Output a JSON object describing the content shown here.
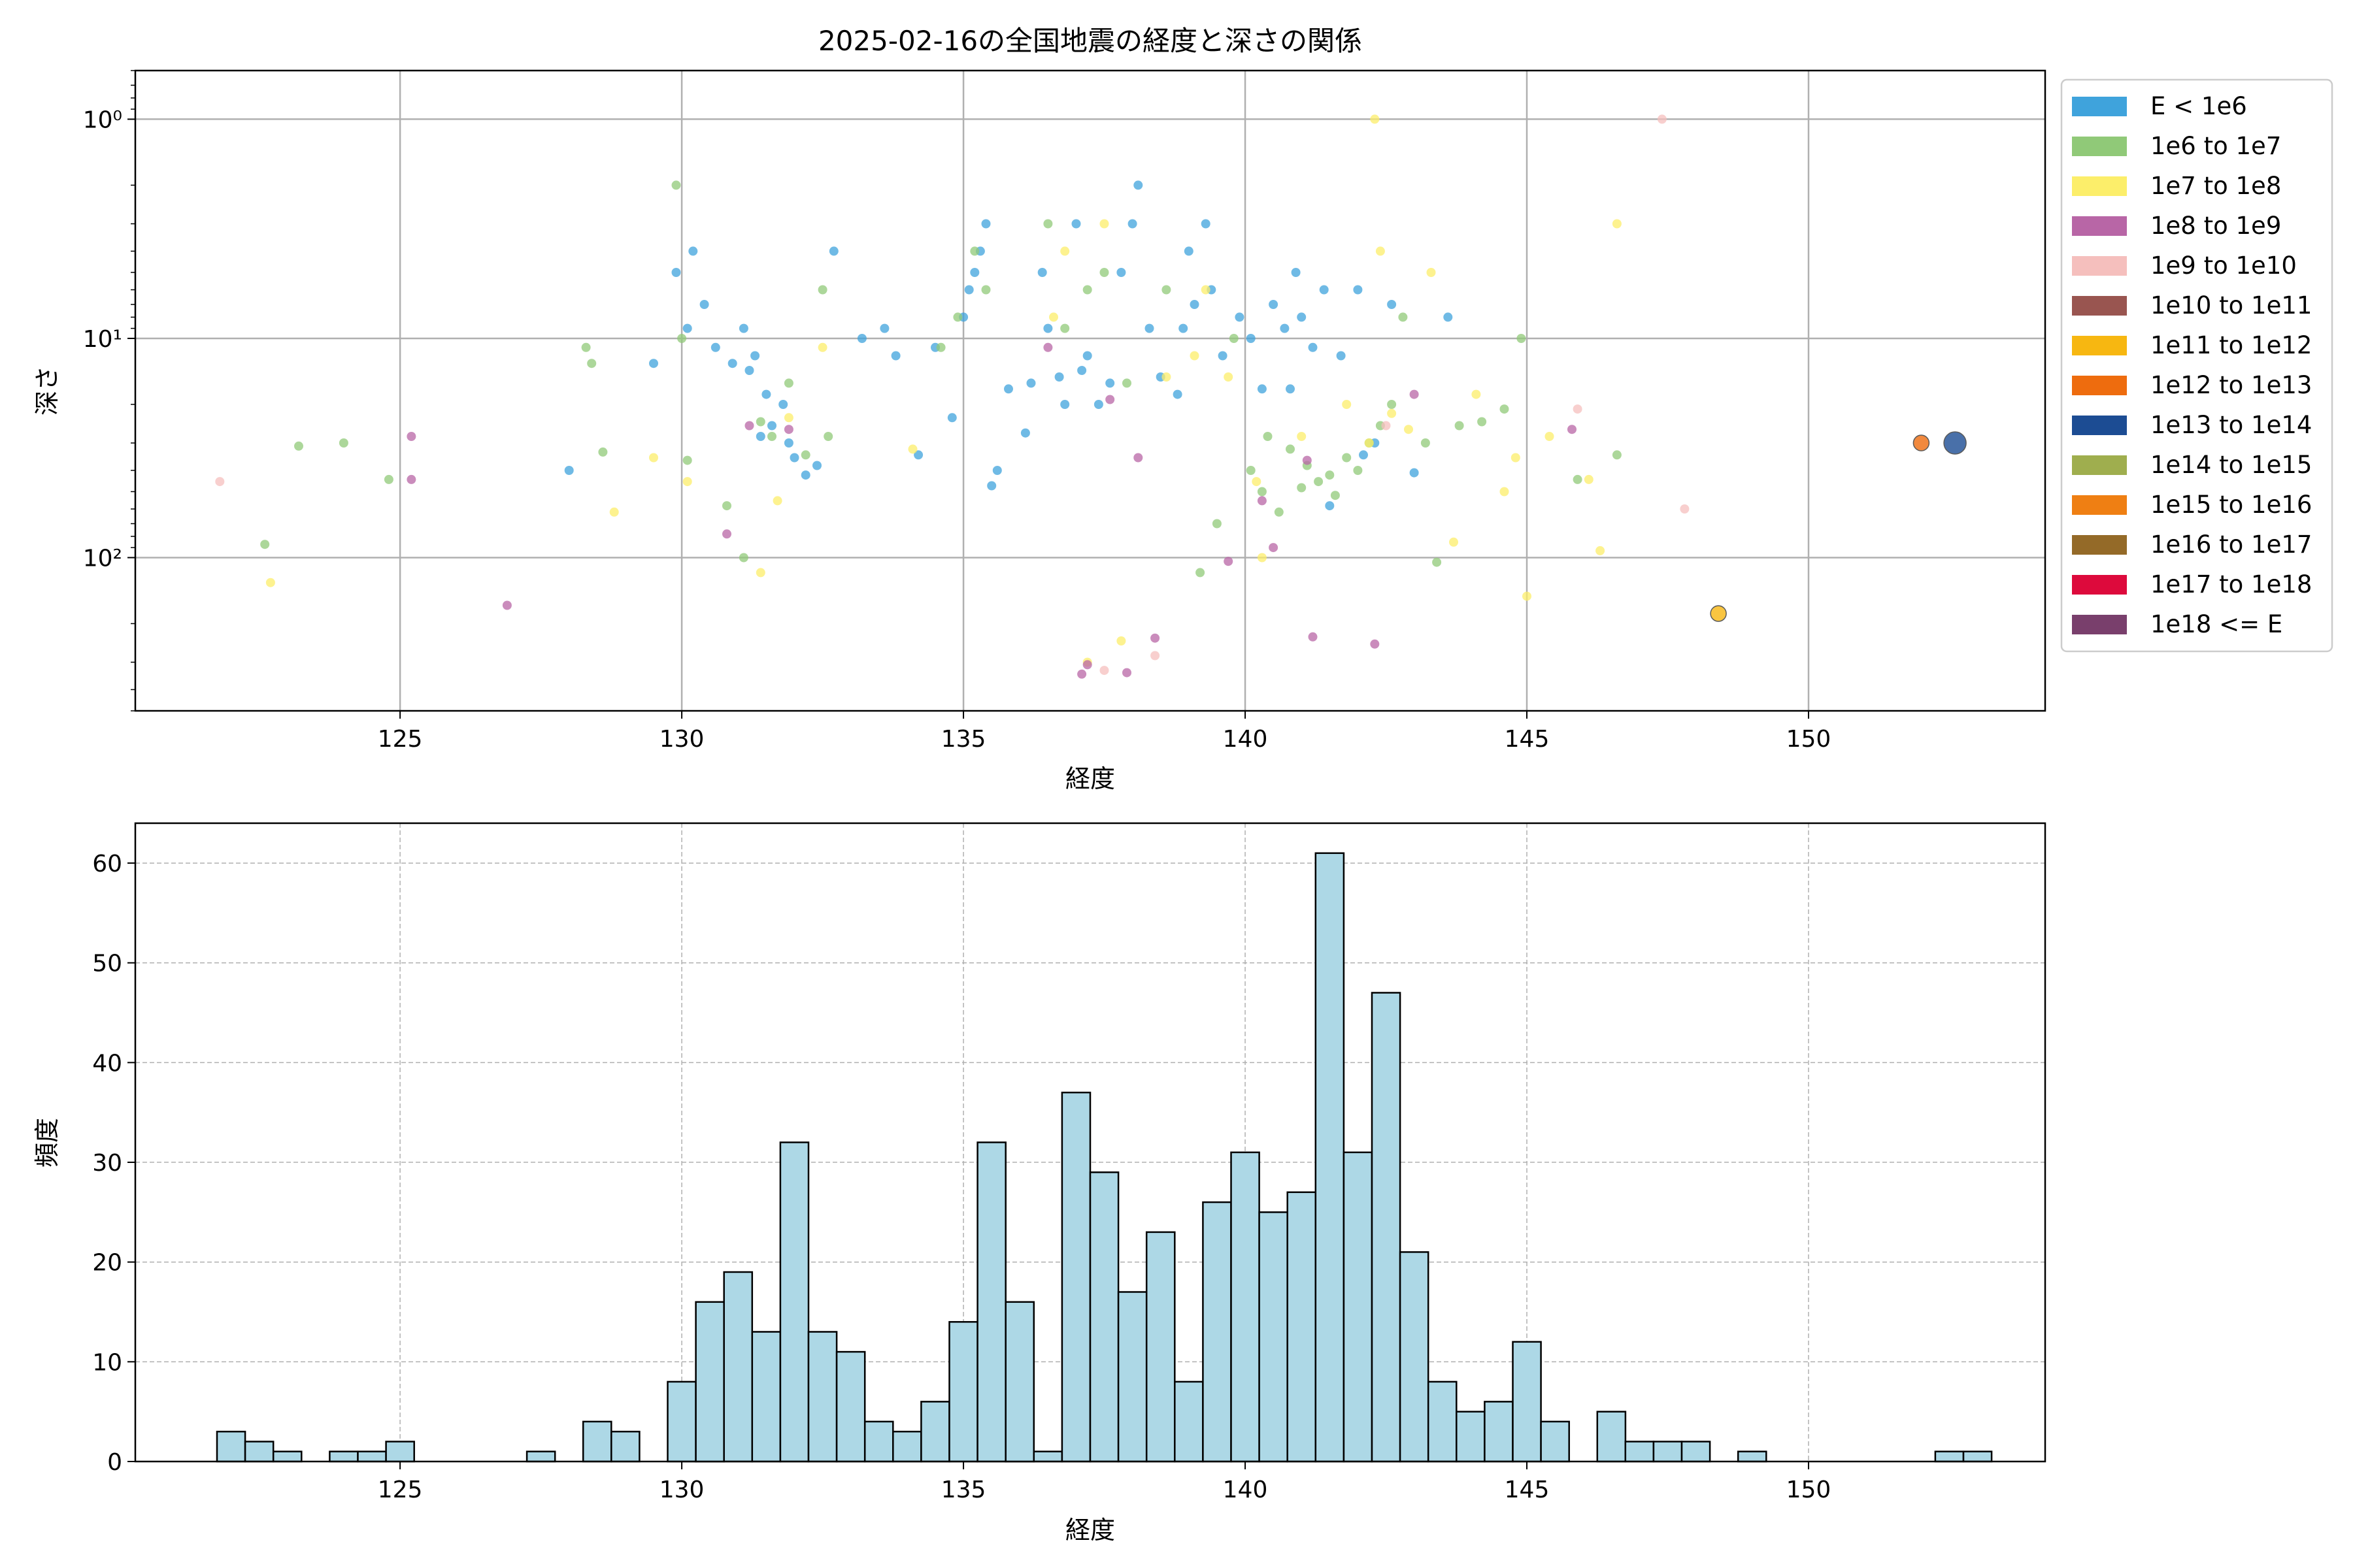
{
  "chart_data": [
    {
      "type": "scatter",
      "title": "2025-02-16の全国地震の経度と深さの関係",
      "xlabel": "経度",
      "ylabel": "深さ",
      "xlim": [
        120.3,
        154.2
      ],
      "ylim": [
        500,
        0.6
      ],
      "y_scale": "log",
      "y_inverted": true,
      "grid": true,
      "xticks": [
        125,
        130,
        135,
        140,
        145,
        150
      ],
      "yticks": [
        {
          "value": 1,
          "label": "10⁰"
        },
        {
          "value": 10,
          "label": "10¹"
        },
        {
          "value": 100,
          "label": "10²"
        }
      ],
      "legend_position": "outside-right",
      "legend": [
        {
          "label": "E < 1e6",
          "color": "#3fa3dc"
        },
        {
          "label": "1e6 to 1e7",
          "color": "#90c978"
        },
        {
          "label": "1e7 to 1e8",
          "color": "#fcee6a"
        },
        {
          "label": "1e8 to 1e9",
          "color": "#b866a6"
        },
        {
          "label": "1e9 to 1e10",
          "color": "#f5bfbd"
        },
        {
          "label": "1e10 to 1e11",
          "color": "#995550"
        },
        {
          "label": "1e11 to 1e12",
          "color": "#f7b711"
        },
        {
          "label": "1e12 to 1e13",
          "color": "#ee6c0e"
        },
        {
          "label": "1e13 to 1e14",
          "color": "#1c4c93"
        },
        {
          "label": "1e14 to 1e15",
          "color": "#9fae4e"
        },
        {
          "label": "1e15 to 1e16",
          "color": "#ef7f13"
        },
        {
          "label": "1e16 to 1e17",
          "color": "#946a28"
        },
        {
          "label": "1e17 to 1e18",
          "color": "#dd0a3c"
        },
        {
          "label": "1e18 <= E",
          "color": "#793f6c"
        }
      ],
      "series": [
        {
          "class": 0,
          "points": [
            [
              129.9,
              5
            ],
            [
              130.2,
              4
            ],
            [
              130.4,
              7
            ],
            [
              130.6,
              11
            ],
            [
              130.9,
              13
            ],
            [
              131.1,
              9
            ],
            [
              131.2,
              14
            ],
            [
              131.3,
              12
            ],
            [
              131.5,
              18
            ],
            [
              131.6,
              25
            ],
            [
              131.8,
              20
            ],
            [
              131.9,
              30
            ],
            [
              132.0,
              35
            ],
            [
              132.2,
              42
            ],
            [
              132.4,
              38
            ],
            [
              132.7,
              4
            ],
            [
              133.2,
              10
            ],
            [
              133.6,
              9
            ],
            [
              133.8,
              12
            ],
            [
              134.2,
              34
            ],
            [
              134.5,
              11
            ],
            [
              134.8,
              23
            ],
            [
              135.0,
              8
            ],
            [
              135.1,
              6
            ],
            [
              135.2,
              5
            ],
            [
              135.3,
              4
            ],
            [
              135.4,
              3
            ],
            [
              135.5,
              47
            ],
            [
              135.6,
              40
            ],
            [
              135.8,
              17
            ],
            [
              136.1,
              27
            ],
            [
              136.4,
              5
            ],
            [
              136.5,
              9
            ],
            [
              136.7,
              15
            ],
            [
              136.8,
              20
            ],
            [
              137.0,
              3
            ],
            [
              137.2,
              12
            ],
            [
              137.4,
              20
            ],
            [
              137.6,
              16
            ],
            [
              137.8,
              5
            ],
            [
              138.0,
              3
            ],
            [
              138.1,
              2
            ],
            [
              138.3,
              9
            ],
            [
              138.5,
              15
            ],
            [
              138.8,
              18
            ],
            [
              139.0,
              4
            ],
            [
              139.1,
              7
            ],
            [
              139.3,
              3
            ],
            [
              139.4,
              6
            ],
            [
              139.6,
              12
            ],
            [
              139.9,
              8
            ],
            [
              140.1,
              10
            ],
            [
              140.3,
              17
            ],
            [
              140.5,
              7
            ],
            [
              140.7,
              9
            ],
            [
              140.9,
              5
            ],
            [
              141.0,
              8
            ],
            [
              141.2,
              11
            ],
            [
              141.4,
              6
            ],
            [
              141.7,
              12
            ],
            [
              142.0,
              6
            ],
            [
              142.3,
              30
            ],
            [
              142.6,
              7
            ],
            [
              143.0,
              41
            ],
            [
              143.6,
              8
            ],
            [
              128.0,
              40
            ],
            [
              129.5,
              13
            ],
            [
              130.1,
              9
            ],
            [
              131.4,
              28
            ],
            [
              136.2,
              16
            ],
            [
              137.1,
              14
            ],
            [
              138.9,
              9
            ],
            [
              140.8,
              17
            ],
            [
              141.5,
              58
            ],
            [
              142.1,
              34
            ]
          ]
        },
        {
          "class": 1,
          "points": [
            [
              122.6,
              87
            ],
            [
              123.2,
              31
            ],
            [
              124.0,
              30
            ],
            [
              124.8,
              44
            ],
            [
              128.4,
              13
            ],
            [
              128.3,
              11
            ],
            [
              128.6,
              33
            ],
            [
              129.9,
              2
            ],
            [
              130.0,
              10
            ],
            [
              130.1,
              36
            ],
            [
              130.8,
              58
            ],
            [
              131.1,
              100
            ],
            [
              131.4,
              24
            ],
            [
              131.6,
              28
            ],
            [
              131.9,
              16
            ],
            [
              132.2,
              34
            ],
            [
              132.5,
              6
            ],
            [
              132.6,
              28
            ],
            [
              134.6,
              11
            ],
            [
              134.9,
              8
            ],
            [
              135.2,
              4
            ],
            [
              135.4,
              6
            ],
            [
              136.5,
              3
            ],
            [
              136.8,
              9
            ],
            [
              137.2,
              6
            ],
            [
              137.5,
              5
            ],
            [
              137.9,
              16
            ],
            [
              138.6,
              6
            ],
            [
              139.2,
              117
            ],
            [
              139.5,
              70
            ],
            [
              139.8,
              10
            ],
            [
              140.1,
              40
            ],
            [
              140.3,
              50
            ],
            [
              140.4,
              28
            ],
            [
              140.6,
              62
            ],
            [
              140.8,
              32
            ],
            [
              141.0,
              48
            ],
            [
              141.1,
              38
            ],
            [
              141.3,
              45
            ],
            [
              141.5,
              42
            ],
            [
              141.6,
              52
            ],
            [
              141.8,
              35
            ],
            [
              142.0,
              40
            ],
            [
              142.2,
              30
            ],
            [
              142.4,
              25
            ],
            [
              142.6,
              20
            ],
            [
              142.8,
              8
            ],
            [
              143.2,
              30
            ],
            [
              143.4,
              105
            ],
            [
              143.8,
              25
            ],
            [
              144.2,
              24
            ],
            [
              144.6,
              21
            ],
            [
              144.9,
              10
            ],
            [
              145.9,
              44
            ],
            [
              146.6,
              34
            ]
          ]
        },
        {
          "class": 2,
          "points": [
            [
              122.7,
              130
            ],
            [
              128.8,
              62
            ],
            [
              129.5,
              35
            ],
            [
              130.1,
              45
            ],
            [
              131.4,
              117
            ],
            [
              131.7,
              55
            ],
            [
              131.9,
              23
            ],
            [
              132.5,
              11
            ],
            [
              134.1,
              32
            ],
            [
              136.6,
              8
            ],
            [
              136.8,
              4
            ],
            [
              137.5,
              3
            ],
            [
              138.6,
              15
            ],
            [
              139.1,
              12
            ],
            [
              139.3,
              6
            ],
            [
              139.7,
              15
            ],
            [
              140.2,
              45
            ],
            [
              141.0,
              28
            ],
            [
              141.8,
              20
            ],
            [
              142.2,
              30
            ],
            [
              142.3,
              1
            ],
            [
              142.4,
              4
            ],
            [
              142.6,
              22
            ],
            [
              142.9,
              26
            ],
            [
              143.3,
              5
            ],
            [
              143.7,
              85
            ],
            [
              144.1,
              18
            ],
            [
              144.6,
              50
            ],
            [
              144.8,
              35
            ],
            [
              145.0,
              150
            ],
            [
              145.4,
              28
            ],
            [
              146.1,
              44
            ],
            [
              146.3,
              93
            ],
            [
              146.6,
              3
            ],
            [
              137.8,
              240
            ],
            [
              140.3,
              100
            ],
            [
              137.2,
              300
            ]
          ]
        },
        {
          "class": 3,
          "points": [
            [
              125.2,
              28
            ],
            [
              125.2,
              44
            ],
            [
              126.9,
              165
            ],
            [
              130.8,
              78
            ],
            [
              131.2,
              25
            ],
            [
              131.9,
              26
            ],
            [
              136.5,
              11
            ],
            [
              137.1,
              340
            ],
            [
              137.2,
              308
            ],
            [
              137.6,
              19
            ],
            [
              137.9,
              335
            ],
            [
              138.1,
              35
            ],
            [
              138.4,
              233
            ],
            [
              139.7,
              104
            ],
            [
              140.3,
              55
            ],
            [
              140.5,
              90
            ],
            [
              141.1,
              36
            ],
            [
              141.2,
              230
            ],
            [
              142.3,
              248
            ],
            [
              143.0,
              18
            ],
            [
              145.8,
              26
            ]
          ]
        },
        {
          "class": 4,
          "points": [
            [
              121.8,
              45
            ],
            [
              137.5,
              327
            ],
            [
              138.4,
              280
            ],
            [
              142.5,
              25
            ],
            [
              145.9,
              21
            ],
            [
              147.4,
              1
            ],
            [
              147.8,
              60
            ]
          ]
        },
        {
          "class": 6,
          "points": [
            [
              148.4,
              180
            ]
          ],
          "size": "large"
        },
        {
          "class": 7,
          "points": [
            [
              152.0,
              30
            ]
          ],
          "size": "large"
        },
        {
          "class": 8,
          "points": [
            [
              152.6,
              30
            ]
          ],
          "size": "xlarge"
        }
      ]
    },
    {
      "type": "bar",
      "subtype": "histogram",
      "title": "",
      "xlabel": "経度",
      "ylabel": "頻度",
      "xlim": [
        120.3,
        154.2
      ],
      "ylim": [
        0,
        64
      ],
      "grid": true,
      "xticks": [
        125,
        130,
        135,
        140,
        145,
        150
      ],
      "yticks": [
        0,
        10,
        20,
        30,
        40,
        50,
        60
      ],
      "bar_color": "#add8e6",
      "bin_start": 121.75,
      "bin_width": 0.5,
      "values": [
        3,
        2,
        1,
        0,
        1,
        1,
        2,
        0,
        0,
        0,
        0,
        1,
        0,
        4,
        3,
        0,
        8,
        16,
        19,
        13,
        32,
        13,
        11,
        4,
        3,
        6,
        14,
        32,
        16,
        1,
        37,
        29,
        17,
        23,
        8,
        26,
        31,
        25,
        27,
        61,
        31,
        47,
        21,
        8,
        5,
        6,
        12,
        4,
        0,
        5,
        2,
        2,
        2,
        0,
        1,
        0,
        0,
        0,
        0,
        0,
        0,
        1,
        1
      ]
    }
  ]
}
